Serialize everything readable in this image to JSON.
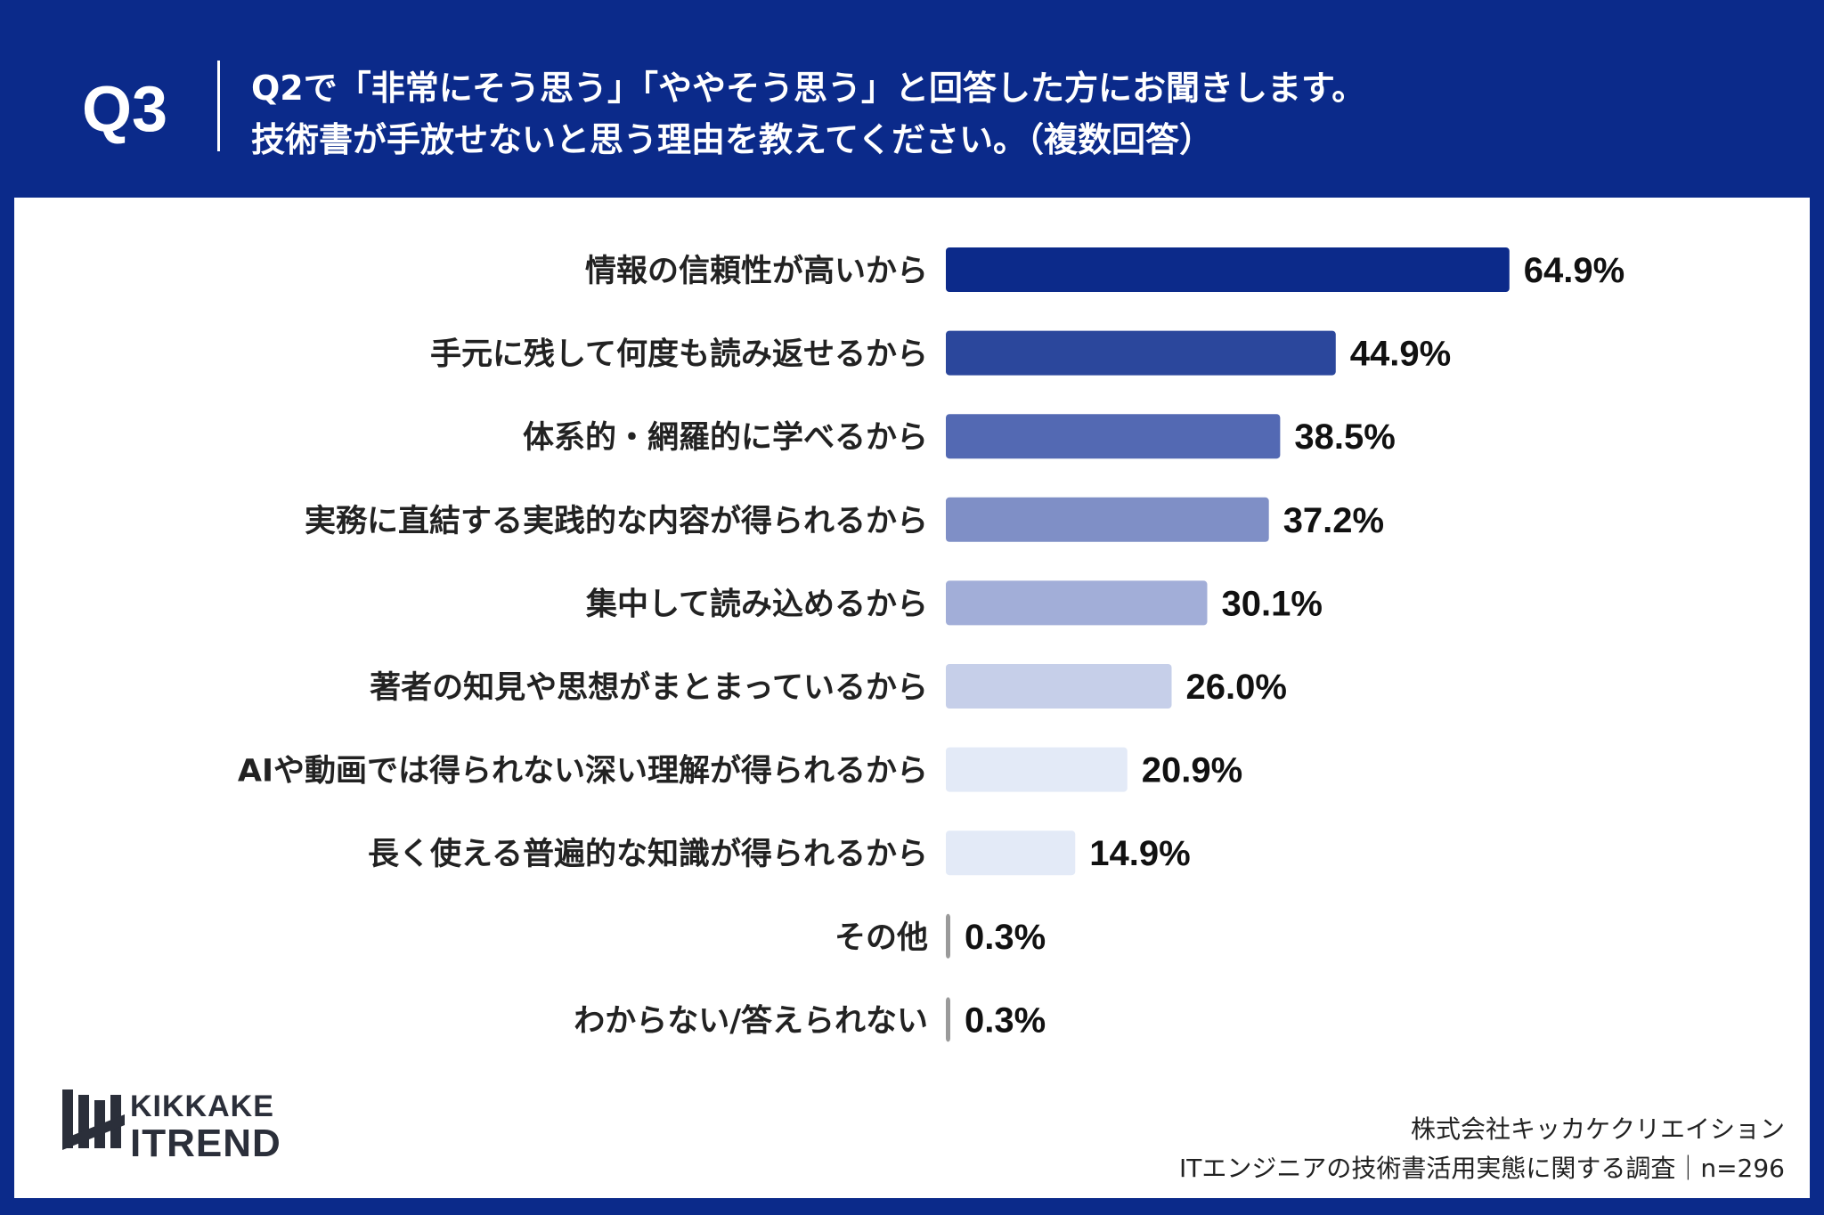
{
  "header": {
    "q_label": "Q3",
    "question_line1": "Q2で「非常にそう思う」「ややそう思う」と回答した方にお聞きします。",
    "question_line2": "技術書が手放せないと思う理由を教えてください。（複数回答）"
  },
  "logo": {
    "line1": "KIKKAKE",
    "line2": "ITREND"
  },
  "footer": {
    "company": "株式会社キッカケクリエイション",
    "survey": "ITエンジニアの技術書活用実態に関する調査｜n=296"
  },
  "chart_data": {
    "type": "bar",
    "orientation": "horizontal",
    "categories": [
      "情報の信頼性が高いから",
      "手元に残して何度も読み返せるから",
      "体系的・網羅的に学べるから",
      "実務に直結する実践的な内容が得られるから",
      "集中して読み込めるから",
      "著者の知見や思想がまとまっているから",
      "AIや動画では得られない深い理解が得られるから",
      "長く使える普遍的な知識が得られるから",
      "その他",
      "わからない/答えられない"
    ],
    "values": [
      64.9,
      44.9,
      38.5,
      37.2,
      30.1,
      26.0,
      20.9,
      14.9,
      0.3,
      0.3
    ],
    "value_labels": [
      "64.9%",
      "44.9%",
      "38.5%",
      "37.2%",
      "30.1%",
      "26.0%",
      "20.9%",
      "14.9%",
      "0.3%",
      "0.3%"
    ],
    "colors": [
      "#0c2a8a",
      "#2b479c",
      "#5369b3",
      "#7f8fc6",
      "#a2aed8",
      "#c6cfe9",
      "#e3eaf7",
      "#e3eaf7",
      "#9a9a9a",
      "#9a9a9a"
    ],
    "xlim": [
      0,
      100
    ],
    "grid": false,
    "legend": "none"
  }
}
